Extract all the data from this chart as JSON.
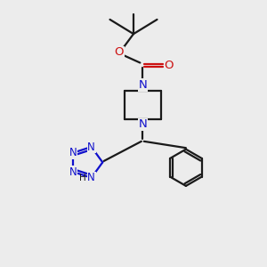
{
  "bg_color": "#ececec",
  "bond_color": "#1a1a1a",
  "nitrogen_color": "#1010cc",
  "oxygen_color": "#cc1010",
  "line_width": 1.6,
  "figsize": [
    3.0,
    3.0
  ],
  "dpi": 100,
  "xlim": [
    0,
    10
  ],
  "ylim": [
    0,
    10
  ]
}
